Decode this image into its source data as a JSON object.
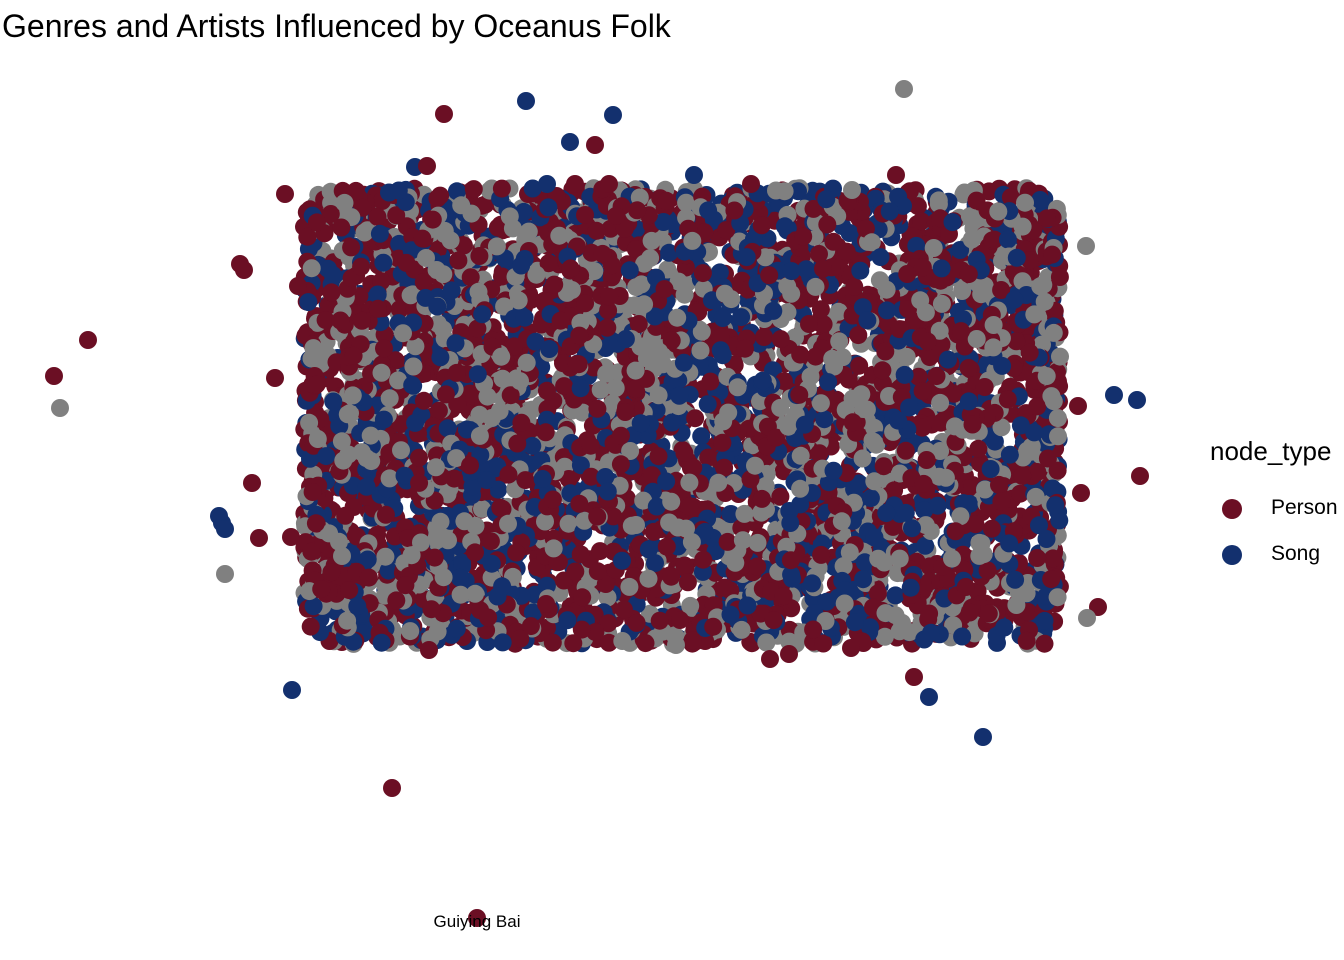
{
  "chart_data": {
    "type": "scatter",
    "title": "Genres and Artists Influenced by Oceanus Folk",
    "xlabel": "",
    "ylabel": "",
    "axes_visible": false,
    "grid": false,
    "legend": {
      "title": "node_type",
      "position": "right",
      "entries": [
        {
          "label": "Person",
          "color": "#6b0f24"
        },
        {
          "label": "Song",
          "color": "#13306e"
        }
      ]
    },
    "unlabeled_series_color": "#808080",
    "annotations": [
      {
        "text": "Guiying Bai",
        "x": 477,
        "y": 918
      }
    ],
    "outlier_points": [
      {
        "color": "#6b0f24",
        "x": 444,
        "y": 114
      },
      {
        "color": "#13306e",
        "x": 526,
        "y": 101
      },
      {
        "color": "#13306e",
        "x": 613,
        "y": 115
      },
      {
        "color": "#13306e",
        "x": 570,
        "y": 142
      },
      {
        "color": "#6b0f24",
        "x": 595,
        "y": 145
      },
      {
        "color": "#808080",
        "x": 904,
        "y": 89
      },
      {
        "color": "#6b0f24",
        "x": 285,
        "y": 194
      },
      {
        "color": "#6b0f24",
        "x": 88,
        "y": 340
      },
      {
        "color": "#6b0f24",
        "x": 54,
        "y": 376
      },
      {
        "color": "#808080",
        "x": 60,
        "y": 408
      },
      {
        "color": "#6b0f24",
        "x": 240,
        "y": 264
      },
      {
        "color": "#6b0f24",
        "x": 244,
        "y": 270
      },
      {
        "color": "#6b0f24",
        "x": 298,
        "y": 286
      },
      {
        "color": "#6b0f24",
        "x": 275,
        "y": 378
      },
      {
        "color": "#6b0f24",
        "x": 252,
        "y": 483
      },
      {
        "color": "#13306e",
        "x": 219,
        "y": 516
      },
      {
        "color": "#13306e",
        "x": 222,
        "y": 523
      },
      {
        "color": "#13306e",
        "x": 225,
        "y": 529
      },
      {
        "color": "#6b0f24",
        "x": 259,
        "y": 538
      },
      {
        "color": "#6b0f24",
        "x": 291,
        "y": 537
      },
      {
        "color": "#808080",
        "x": 225,
        "y": 574
      },
      {
        "color": "#13306e",
        "x": 292,
        "y": 690
      },
      {
        "color": "#6b0f24",
        "x": 392,
        "y": 788
      },
      {
        "color": "#6b0f24",
        "x": 477,
        "y": 918
      },
      {
        "color": "#808080",
        "x": 1086,
        "y": 246
      },
      {
        "color": "#13306e",
        "x": 1114,
        "y": 395
      },
      {
        "color": "#13306e",
        "x": 1137,
        "y": 400
      },
      {
        "color": "#6b0f24",
        "x": 1078,
        "y": 406
      },
      {
        "color": "#6b0f24",
        "x": 1140,
        "y": 476
      },
      {
        "color": "#6b0f24",
        "x": 1081,
        "y": 493
      },
      {
        "color": "#6b0f24",
        "x": 1098,
        "y": 607
      },
      {
        "color": "#808080",
        "x": 1087,
        "y": 618
      },
      {
        "color": "#6b0f24",
        "x": 914,
        "y": 677
      },
      {
        "color": "#13306e",
        "x": 929,
        "y": 697
      },
      {
        "color": "#13306e",
        "x": 983,
        "y": 737
      },
      {
        "color": "#808080",
        "x": 676,
        "y": 645
      },
      {
        "color": "#6b0f24",
        "x": 770,
        "y": 659
      },
      {
        "color": "#6b0f24",
        "x": 789,
        "y": 654
      },
      {
        "color": "#6b0f24",
        "x": 851,
        "y": 648
      },
      {
        "color": "#6b0f24",
        "x": 429,
        "y": 650
      },
      {
        "color": "#13306e",
        "x": 415,
        "y": 167
      },
      {
        "color": "#6b0f24",
        "x": 427,
        "y": 166
      },
      {
        "color": "#13306e",
        "x": 547,
        "y": 184
      },
      {
        "color": "#6b0f24",
        "x": 575,
        "y": 184
      },
      {
        "color": "#6b0f24",
        "x": 609,
        "y": 184
      },
      {
        "color": "#13306e",
        "x": 694,
        "y": 175
      },
      {
        "color": "#6b0f24",
        "x": 751,
        "y": 184
      },
      {
        "color": "#808080",
        "x": 852,
        "y": 190
      },
      {
        "color": "#6b0f24",
        "x": 896,
        "y": 175
      }
    ],
    "dense_cluster": {
      "x_range": [
        318,
        1046
      ],
      "y_range": [
        202,
        630
      ],
      "approx_points": 5200,
      "composition": {
        "Person": 0.46,
        "Song": 0.26,
        "unlabeled": 0.28
      }
    }
  }
}
